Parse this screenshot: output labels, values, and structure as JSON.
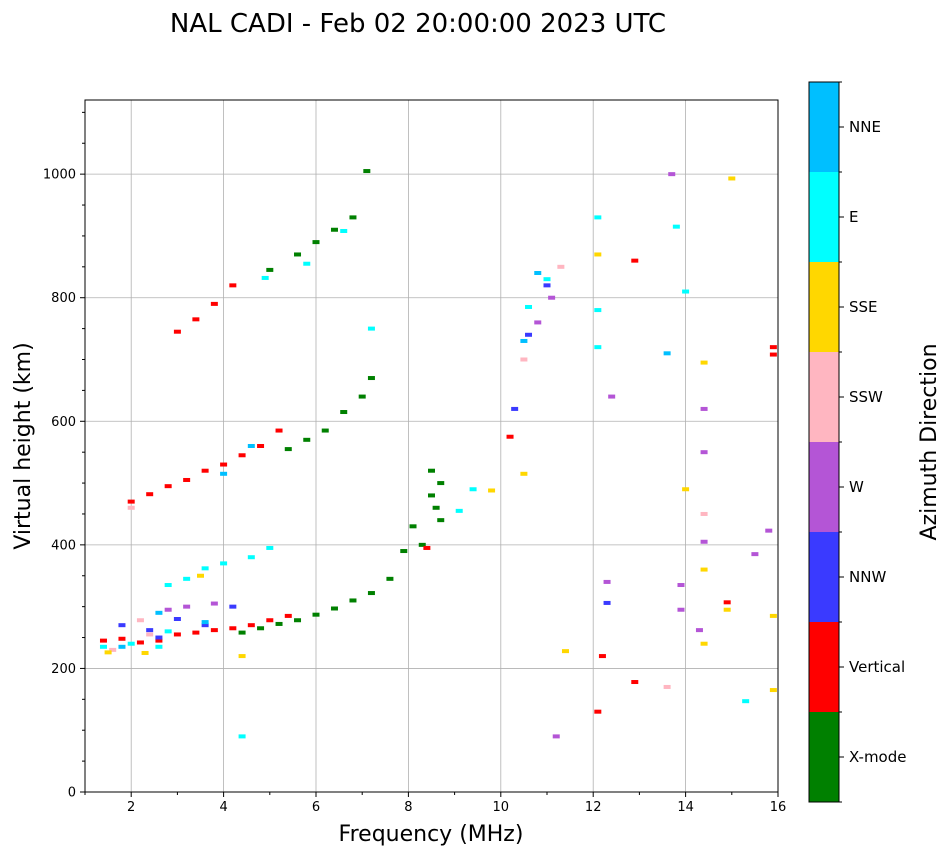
{
  "chart_data": {
    "type": "scatter",
    "title": "NAL CADI - Feb 02 20:00:00 2023 UTC",
    "xlabel": "Frequency (MHz)",
    "ylabel": "Virtual height (km)",
    "colorbar_label": "Azimuth Direction",
    "xlim": [
      1.0,
      16.0
    ],
    "ylim": [
      0,
      1120
    ],
    "x_ticks": [
      2,
      4,
      6,
      8,
      10,
      12,
      14,
      16
    ],
    "x_tick_labels": [
      "2",
      "4",
      "6",
      "8",
      "10",
      "12",
      "14",
      "16"
    ],
    "y_ticks": [
      0,
      200,
      400,
      600,
      800,
      1000
    ],
    "y_tick_labels": [
      "0",
      "200",
      "400",
      "600",
      "800",
      "1000"
    ],
    "grid": true,
    "categories": [
      "X-mode",
      "Vertical",
      "NNW",
      "W",
      "SSW",
      "SSE",
      "E",
      "NNE"
    ],
    "colors": {
      "X-mode": "#008000",
      "Vertical": "#ff0000",
      "NNW": "#3a3aff",
      "W": "#b455d6",
      "SSW": "#ffb6c1",
      "SSE": "#ffd700",
      "E": "#00ffff",
      "NNE": "#00bfff"
    },
    "series": [
      {
        "name": "X-mode",
        "points": [
          [
            4.4,
            258
          ],
          [
            4.8,
            265
          ],
          [
            5.2,
            272
          ],
          [
            5.6,
            278
          ],
          [
            6.0,
            287
          ],
          [
            6.4,
            297
          ],
          [
            6.8,
            310
          ],
          [
            7.2,
            322
          ],
          [
            7.6,
            345
          ],
          [
            7.9,
            390
          ],
          [
            8.1,
            430
          ],
          [
            8.3,
            400
          ],
          [
            8.5,
            480
          ],
          [
            8.5,
            520
          ],
          [
            8.6,
            460
          ],
          [
            8.7,
            440
          ],
          [
            8.7,
            500
          ],
          [
            5.4,
            555
          ],
          [
            5.8,
            570
          ],
          [
            6.2,
            585
          ],
          [
            6.6,
            615
          ],
          [
            7.0,
            640
          ],
          [
            7.2,
            670
          ],
          [
            5.0,
            845
          ],
          [
            5.6,
            870
          ],
          [
            6.0,
            890
          ],
          [
            6.4,
            910
          ],
          [
            6.8,
            930
          ],
          [
            7.1,
            1005
          ]
        ]
      },
      {
        "name": "Vertical",
        "points": [
          [
            1.4,
            245
          ],
          [
            1.8,
            248
          ],
          [
            2.2,
            242
          ],
          [
            2.6,
            245
          ],
          [
            3.0,
            255
          ],
          [
            3.4,
            258
          ],
          [
            3.8,
            262
          ],
          [
            4.2,
            265
          ],
          [
            4.6,
            270
          ],
          [
            5.0,
            278
          ],
          [
            5.4,
            285
          ],
          [
            2.0,
            470
          ],
          [
            2.4,
            482
          ],
          [
            2.8,
            495
          ],
          [
            3.2,
            505
          ],
          [
            3.6,
            520
          ],
          [
            4.0,
            530
          ],
          [
            4.4,
            545
          ],
          [
            4.8,
            560
          ],
          [
            5.2,
            585
          ],
          [
            3.0,
            745
          ],
          [
            3.4,
            765
          ],
          [
            3.8,
            790
          ],
          [
            4.2,
            820
          ],
          [
            8.4,
            395
          ],
          [
            12.9,
            860
          ],
          [
            15.9,
            720
          ],
          [
            15.9,
            708
          ],
          [
            10.2,
            575
          ],
          [
            14.9,
            307
          ],
          [
            12.2,
            220
          ],
          [
            12.9,
            178
          ],
          [
            12.1,
            130
          ]
        ]
      },
      {
        "name": "NNW",
        "points": [
          [
            1.8,
            270
          ],
          [
            2.4,
            262
          ],
          [
            2.6,
            250
          ],
          [
            3.0,
            280
          ],
          [
            3.6,
            270
          ],
          [
            4.2,
            300
          ],
          [
            12.3,
            306
          ],
          [
            10.3,
            620
          ],
          [
            10.6,
            740
          ],
          [
            11.0,
            820
          ]
        ]
      },
      {
        "name": "W",
        "points": [
          [
            2.8,
            295
          ],
          [
            3.2,
            300
          ],
          [
            3.8,
            305
          ],
          [
            10.8,
            760
          ],
          [
            11.1,
            800
          ],
          [
            13.7,
            1000
          ],
          [
            14.4,
            620
          ],
          [
            14.4,
            550
          ],
          [
            14.4,
            405
          ],
          [
            14.3,
            262
          ],
          [
            13.9,
            335
          ],
          [
            13.9,
            295
          ],
          [
            15.5,
            385
          ],
          [
            15.8,
            423
          ],
          [
            11.2,
            90
          ],
          [
            12.4,
            640
          ],
          [
            12.3,
            340
          ]
        ]
      },
      {
        "name": "SSW",
        "points": [
          [
            1.6,
            230
          ],
          [
            2.2,
            278
          ],
          [
            2.4,
            255
          ],
          [
            2.0,
            460
          ],
          [
            10.5,
            700
          ],
          [
            11.3,
            850
          ],
          [
            13.6,
            170
          ],
          [
            14.4,
            450
          ]
        ]
      },
      {
        "name": "SSE",
        "points": [
          [
            1.5,
            226
          ],
          [
            2.3,
            225
          ],
          [
            3.5,
            350
          ],
          [
            4.4,
            220
          ],
          [
            9.8,
            488
          ],
          [
            10.5,
            515
          ],
          [
            11.4,
            228
          ],
          [
            12.1,
            870
          ],
          [
            14.0,
            490
          ],
          [
            14.4,
            695
          ],
          [
            14.4,
            360
          ],
          [
            14.4,
            240
          ],
          [
            14.9,
            295
          ],
          [
            15.0,
            993
          ],
          [
            15.9,
            285
          ],
          [
            15.9,
            165
          ]
        ]
      },
      {
        "name": "E",
        "points": [
          [
            1.4,
            235
          ],
          [
            2.0,
            240
          ],
          [
            2.6,
            235
          ],
          [
            2.8,
            335
          ],
          [
            3.2,
            345
          ],
          [
            3.6,
            362
          ],
          [
            4.0,
            370
          ],
          [
            4.6,
            380
          ],
          [
            5.0,
            395
          ],
          [
            2.8,
            260
          ],
          [
            4.4,
            90
          ],
          [
            4.9,
            832
          ],
          [
            5.8,
            855
          ],
          [
            6.6,
            908
          ],
          [
            7.2,
            750
          ],
          [
            10.6,
            785
          ],
          [
            11.0,
            830
          ],
          [
            12.1,
            930
          ],
          [
            12.1,
            780
          ],
          [
            12.1,
            720
          ],
          [
            13.8,
            915
          ],
          [
            14.0,
            810
          ],
          [
            15.3,
            147
          ],
          [
            9.1,
            455
          ],
          [
            9.4,
            490
          ]
        ]
      },
      {
        "name": "NNE",
        "points": [
          [
            1.8,
            235
          ],
          [
            2.6,
            290
          ],
          [
            3.6,
            275
          ],
          [
            4.6,
            560
          ],
          [
            4.0,
            515
          ],
          [
            10.8,
            840
          ],
          [
            13.6,
            710
          ],
          [
            10.5,
            730
          ]
        ]
      }
    ]
  }
}
